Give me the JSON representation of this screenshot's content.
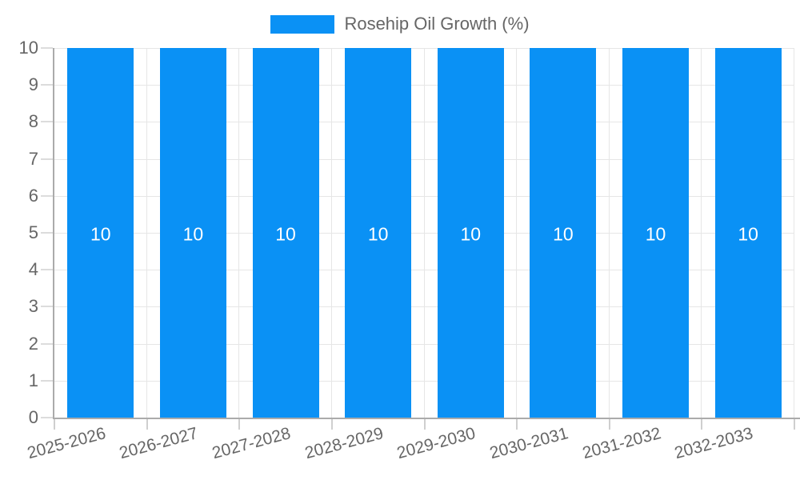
{
  "legend": {
    "label": "Rosehip Oil Growth (%)",
    "position": "top"
  },
  "colors": {
    "bar": "#0a91f5",
    "label_text": "#666666",
    "grid": "#e6e6e6",
    "axis_border": "#ababab",
    "tick_mark_y": "#dcdcdc",
    "tick_mark_x": "#cfcfcf",
    "bar_value_label": "#ffffff",
    "background": "#ffffff"
  },
  "chart_data": {
    "type": "bar",
    "title": "",
    "categories": [
      "2025-2026",
      "2026-2027",
      "2027-2028",
      "2028-2029",
      "2029-2030",
      "2030-2031",
      "2031-2032",
      "2032-2033"
    ],
    "series": [
      {
        "name": "Rosehip Oil Growth (%)",
        "values": [
          10,
          10,
          10,
          10,
          10,
          10,
          10,
          10
        ]
      }
    ],
    "bar_value_labels": [
      "10",
      "10",
      "10",
      "10",
      "10",
      "10",
      "10",
      "10"
    ],
    "xlabel": "",
    "ylabel": "",
    "ylim": [
      0,
      10
    ],
    "yticks": [
      0,
      1,
      2,
      3,
      4,
      5,
      6,
      7,
      8,
      9,
      10
    ],
    "grid": true,
    "legend_position": "top",
    "x_label_rotation_deg": -15
  }
}
